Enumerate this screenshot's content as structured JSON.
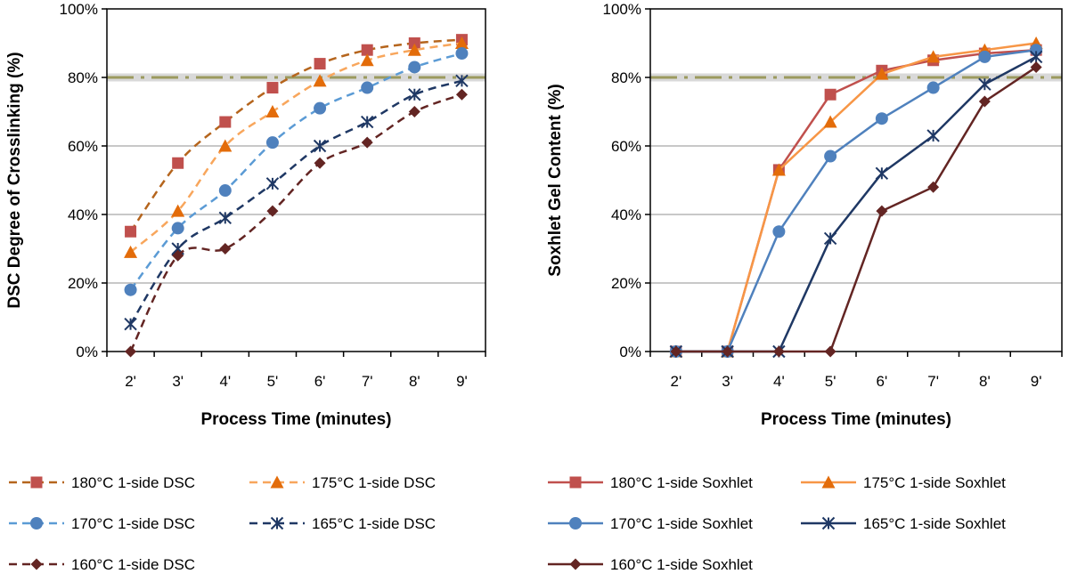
{
  "chart_data": [
    {
      "type": "line",
      "xlabel": "Process Time (minutes)",
      "ylabel": "DSC Degree of Crosslinking (%)",
      "categories": [
        "2'",
        "3'",
        "4'",
        "5'",
        "6'",
        "7'",
        "8'",
        "9'"
      ],
      "ylim": [
        0,
        100
      ],
      "yticks": [
        "0%",
        "20%",
        "40%",
        "60%",
        "80%",
        "100%"
      ],
      "grid": true,
      "reference_line": 80,
      "legend_position": "bottom",
      "series": [
        {
          "name": "180°C 1-side DSC",
          "color": "#c0504d",
          "marker": "square",
          "line_color": "#b5651d",
          "dash": true,
          "values": [
            35,
            55,
            67,
            77,
            84,
            88,
            90,
            91
          ]
        },
        {
          "name": "175°C 1-side DSC",
          "color": "#e36c0a",
          "marker": "triangle",
          "line_color": "#f8a65c",
          "dash": true,
          "values": [
            29,
            41,
            60,
            70,
            79,
            85,
            88,
            90
          ]
        },
        {
          "name": "170°C 1-side DSC",
          "color": "#4f81bd",
          "marker": "circle",
          "line_color": "#5b9bd5",
          "dash": true,
          "values": [
            18,
            36,
            47,
            61,
            71,
            77,
            83,
            87
          ]
        },
        {
          "name": "165°C 1-side DSC",
          "color": "#1f3864",
          "marker": "star",
          "line_color": "#1f3864",
          "dash": true,
          "values": [
            8,
            30,
            39,
            49,
            60,
            67,
            75,
            79
          ]
        },
        {
          "name": "160°C 1-side DSC",
          "color": "#632523",
          "marker": "diamond",
          "line_color": "#632523",
          "dash": true,
          "values": [
            0,
            28,
            30,
            41,
            55,
            61,
            70,
            75
          ]
        }
      ]
    },
    {
      "type": "line",
      "xlabel": "Process Time (minutes)",
      "ylabel": "Soxhlet Gel Content (%)",
      "categories": [
        "2'",
        "3'",
        "4'",
        "5'",
        "6'",
        "7'",
        "8'",
        "9'"
      ],
      "ylim": [
        0,
        100
      ],
      "yticks": [
        "0%",
        "20%",
        "40%",
        "60%",
        "80%",
        "100%"
      ],
      "grid": true,
      "reference_line": 80,
      "legend_position": "bottom",
      "series": [
        {
          "name": "180°C 1-side Soxhlet",
          "color": "#c0504d",
          "marker": "square",
          "line_color": "#c0504d",
          "dash": false,
          "values": [
            0,
            0,
            53,
            75,
            82,
            85,
            87,
            88
          ]
        },
        {
          "name": "175°C 1-side Soxhlet",
          "color": "#e36c0a",
          "marker": "triangle",
          "line_color": "#f79646",
          "dash": false,
          "values": [
            0,
            0,
            53,
            67,
            81,
            86,
            88,
            90
          ]
        },
        {
          "name": "170°C 1-side Soxhlet",
          "color": "#4f81bd",
          "marker": "circle",
          "line_color": "#4f81bd",
          "dash": false,
          "values": [
            0,
            0,
            35,
            57,
            68,
            77,
            86,
            88
          ]
        },
        {
          "name": "165°C 1-side Soxhlet",
          "color": "#1f3864",
          "marker": "star",
          "line_color": "#1f3864",
          "dash": false,
          "values": [
            0,
            0,
            0,
            33,
            52,
            63,
            78,
            86
          ]
        },
        {
          "name": "160°C 1-side Soxhlet",
          "color": "#632523",
          "marker": "diamond",
          "line_color": "#632523",
          "dash": false,
          "values": [
            0,
            0,
            0,
            0,
            41,
            48,
            73,
            83
          ]
        }
      ]
    }
  ]
}
